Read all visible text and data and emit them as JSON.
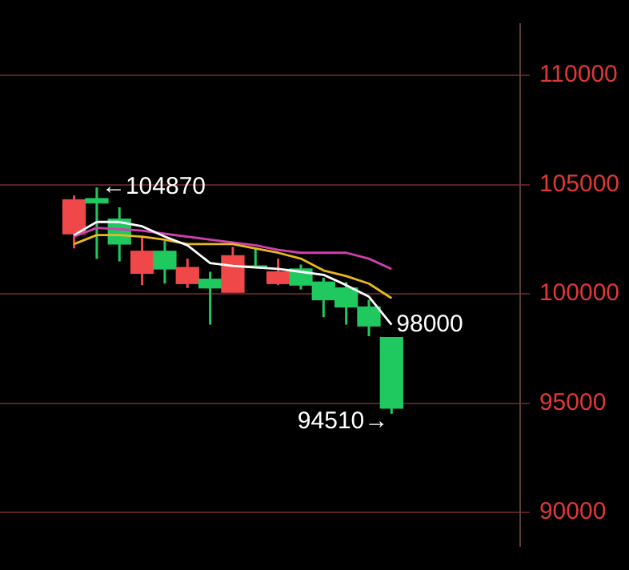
{
  "chart_data": {
    "type": "candlestick",
    "categories": [
      null,
      null,
      null,
      null,
      null,
      null,
      null,
      null,
      null,
      null,
      null,
      null,
      null,
      null,
      null
    ],
    "ohlc": [
      [
        102750,
        104500,
        102080,
        104300
      ],
      [
        104360,
        104870,
        101600,
        104160
      ],
      [
        103420,
        103960,
        101480,
        102280
      ],
      [
        100940,
        102620,
        100400,
        101950
      ],
      [
        101950,
        102420,
        100470,
        101140
      ],
      [
        100470,
        101610,
        100270,
        101210
      ],
      [
        100670,
        101010,
        98590,
        100270
      ],
      [
        100070,
        102150,
        100070,
        101750
      ],
      [
        101280,
        102080,
        101210,
        101210
      ],
      [
        100470,
        101610,
        100400,
        101010
      ],
      [
        101140,
        101340,
        100200,
        100400
      ],
      [
        100540,
        100740,
        98930,
        99730
      ],
      [
        100270,
        100540,
        98590,
        99400
      ],
      [
        99400,
        99730,
        98060,
        98530
      ],
      [
        98000,
        98000,
        94510,
        94770
      ]
    ],
    "colors": [
      "#f04848",
      "#20c860",
      "#20c860",
      "#f04848",
      "#20c860",
      "#f04848",
      "#20c860",
      "#f04848",
      "#20c860",
      "#f04848",
      "#20c860",
      "#20c860",
      "#20c860",
      "#20c860",
      "#20c860"
    ],
    "series": [
      {
        "type": "line",
        "color": "#ffffff",
        "values": [
          102690,
          103290,
          103290,
          103090,
          102620,
          102220,
          101410,
          101280,
          101210,
          101140,
          101010,
          100870,
          100400,
          99870,
          98590
        ]
      },
      {
        "type": "line",
        "color": "#e8b820",
        "values": [
          102280,
          102690,
          102690,
          102620,
          102480,
          102280,
          102280,
          102280,
          102080,
          101880,
          101610,
          101070,
          100810,
          100470,
          99800
        ]
      },
      {
        "type": "line",
        "color": "#d040b0",
        "values": [
          102620,
          103020,
          102960,
          102890,
          102750,
          102620,
          102480,
          102350,
          102220,
          102010,
          101880,
          101880,
          101880,
          101610,
          101140
        ]
      }
    ],
    "ylim": [
      88460,
      112350
    ],
    "yticks": [
      90000,
      95000,
      100000,
      105000,
      110000
    ],
    "grid": "y",
    "annotations": [
      "←104870",
      "98000",
      "94510→"
    ]
  }
}
